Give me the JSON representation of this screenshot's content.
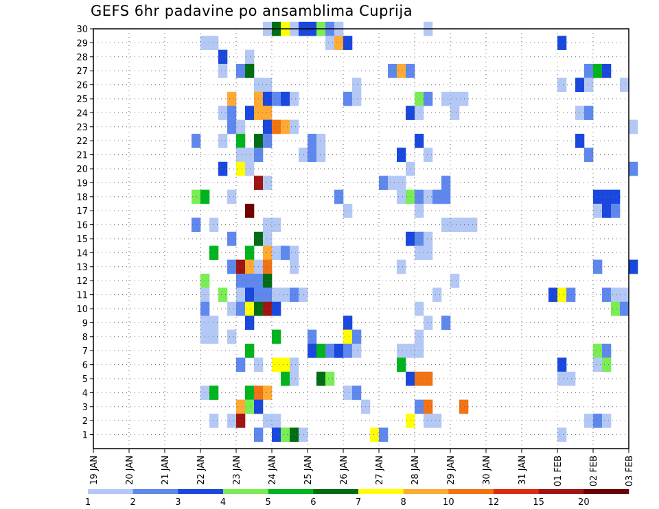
{
  "title": "GEFS 6hr padavine po ansamblima Cuprija",
  "chart_data": {
    "type": "heatmap",
    "title": "GEFS 6hr padavine po ansamblima Cuprija",
    "xlabel": "",
    "ylabel": "",
    "x_ticks": [
      "19 JAN",
      "20 JAN",
      "21 JAN",
      "22 JAN",
      "23 JAN",
      "24 JAN",
      "25 JAN",
      "26 JAN",
      "27 JAN",
      "28 JAN",
      "29 JAN",
      "30 JAN",
      "31 JAN",
      "01 FEB",
      "02 FEB",
      "03 FEB"
    ],
    "x_step_hours": 6,
    "y_ticks": [
      1,
      2,
      3,
      4,
      5,
      6,
      7,
      8,
      9,
      10,
      11,
      12,
      13,
      14,
      15,
      16,
      17,
      18,
      19,
      20,
      21,
      22,
      23,
      24,
      25,
      26,
      27,
      28,
      29,
      30
    ],
    "ylim": [
      0,
      30
    ],
    "grid": true,
    "colorbar": {
      "levels": [
        1,
        2,
        3,
        4,
        5,
        6,
        7,
        8,
        10,
        12,
        15,
        20
      ],
      "colors": [
        "#b4c8f5",
        "#5f88ee",
        "#1a48de",
        "#7aed54",
        "#00b41e",
        "#006d14",
        "#ffff00",
        "#ffaa32",
        "#f27314",
        "#dc2a10",
        "#a01414",
        "#6e0000"
      ]
    },
    "cells": [
      {
        "y": 30,
        "x": 19,
        "v": 1
      },
      {
        "y": 30,
        "x": 20,
        "v": 6
      },
      {
        "y": 30,
        "x": 21,
        "v": 7
      },
      {
        "y": 30,
        "x": 22,
        "v": 1
      },
      {
        "y": 30,
        "x": 23,
        "v": 3
      },
      {
        "y": 30,
        "x": 24,
        "v": 3
      },
      {
        "y": 30,
        "x": 25,
        "v": 4
      },
      {
        "y": 30,
        "x": 26,
        "v": 2
      },
      {
        "y": 30,
        "x": 27,
        "v": 1
      },
      {
        "y": 30,
        "x": 37,
        "v": 1
      },
      {
        "y": 29,
        "x": 12,
        "v": 1
      },
      {
        "y": 29,
        "x": 13,
        "v": 1
      },
      {
        "y": 29,
        "x": 26,
        "v": 1
      },
      {
        "y": 29,
        "x": 27,
        "v": 8
      },
      {
        "y": 29,
        "x": 28,
        "v": 3
      },
      {
        "y": 29,
        "x": 52,
        "v": 3
      },
      {
        "y": 28,
        "x": 14,
        "v": 3
      },
      {
        "y": 28,
        "x": 17,
        "v": 1
      },
      {
        "y": 27,
        "x": 14,
        "v": 1
      },
      {
        "y": 27,
        "x": 16,
        "v": 2
      },
      {
        "y": 27,
        "x": 17,
        "v": 6
      },
      {
        "y": 27,
        "x": 33,
        "v": 2
      },
      {
        "y": 27,
        "x": 34,
        "v": 8
      },
      {
        "y": 27,
        "x": 35,
        "v": 2
      },
      {
        "y": 27,
        "x": 55,
        "v": 2
      },
      {
        "y": 27,
        "x": 56,
        "v": 5
      },
      {
        "y": 27,
        "x": 57,
        "v": 3
      },
      {
        "y": 26,
        "x": 18,
        "v": 1
      },
      {
        "y": 26,
        "x": 19,
        "v": 1
      },
      {
        "y": 26,
        "x": 29,
        "v": 1
      },
      {
        "y": 26,
        "x": 52,
        "v": 1
      },
      {
        "y": 26,
        "x": 54,
        "v": 3
      },
      {
        "y": 26,
        "x": 55,
        "v": 1
      },
      {
        "y": 26,
        "x": 59,
        "v": 1
      },
      {
        "y": 25,
        "x": 15,
        "v": 8
      },
      {
        "y": 25,
        "x": 18,
        "v": 8
      },
      {
        "y": 25,
        "x": 19,
        "v": 3
      },
      {
        "y": 25,
        "x": 20,
        "v": 2
      },
      {
        "y": 25,
        "x": 21,
        "v": 3
      },
      {
        "y": 25,
        "x": 22,
        "v": 1
      },
      {
        "y": 25,
        "x": 28,
        "v": 2
      },
      {
        "y": 25,
        "x": 29,
        "v": 1
      },
      {
        "y": 25,
        "x": 36,
        "v": 4
      },
      {
        "y": 25,
        "x": 37,
        "v": 2
      },
      {
        "y": 25,
        "x": 39,
        "v": 1
      },
      {
        "y": 25,
        "x": 40,
        "v": 1
      },
      {
        "y": 25,
        "x": 41,
        "v": 1
      },
      {
        "y": 24,
        "x": 14,
        "v": 1
      },
      {
        "y": 24,
        "x": 15,
        "v": 2
      },
      {
        "y": 24,
        "x": 17,
        "v": 3
      },
      {
        "y": 24,
        "x": 18,
        "v": 8
      },
      {
        "y": 24,
        "x": 19,
        "v": 8
      },
      {
        "y": 24,
        "x": 35,
        "v": 3
      },
      {
        "y": 24,
        "x": 36,
        "v": 1
      },
      {
        "y": 24,
        "x": 40,
        "v": 1
      },
      {
        "y": 24,
        "x": 54,
        "v": 1
      },
      {
        "y": 24,
        "x": 55,
        "v": 2
      },
      {
        "y": 23,
        "x": 15,
        "v": 2
      },
      {
        "y": 23,
        "x": 16,
        "v": 1
      },
      {
        "y": 23,
        "x": 19,
        "v": 3
      },
      {
        "y": 23,
        "x": 20,
        "v": 10
      },
      {
        "y": 23,
        "x": 21,
        "v": 8
      },
      {
        "y": 23,
        "x": 22,
        "v": 1
      },
      {
        "y": 23,
        "x": 60,
        "v": 1
      },
      {
        "y": 22,
        "x": 11,
        "v": 2
      },
      {
        "y": 22,
        "x": 14,
        "v": 1
      },
      {
        "y": 22,
        "x": 16,
        "v": 5
      },
      {
        "y": 22,
        "x": 18,
        "v": 6
      },
      {
        "y": 22,
        "x": 19,
        "v": 2
      },
      {
        "y": 22,
        "x": 24,
        "v": 2
      },
      {
        "y": 22,
        "x": 25,
        "v": 1
      },
      {
        "y": 22,
        "x": 36,
        "v": 3
      },
      {
        "y": 22,
        "x": 54,
        "v": 3
      },
      {
        "y": 21,
        "x": 16,
        "v": 1
      },
      {
        "y": 21,
        "x": 17,
        "v": 1
      },
      {
        "y": 21,
        "x": 18,
        "v": 2
      },
      {
        "y": 21,
        "x": 23,
        "v": 1
      },
      {
        "y": 21,
        "x": 24,
        "v": 2
      },
      {
        "y": 21,
        "x": 25,
        "v": 1
      },
      {
        "y": 21,
        "x": 34,
        "v": 3
      },
      {
        "y": 21,
        "x": 37,
        "v": 1
      },
      {
        "y": 21,
        "x": 55,
        "v": 2
      },
      {
        "y": 20,
        "x": 14,
        "v": 3
      },
      {
        "y": 20,
        "x": 16,
        "v": 7
      },
      {
        "y": 20,
        "x": 17,
        "v": 1
      },
      {
        "y": 20,
        "x": 35,
        "v": 1
      },
      {
        "y": 20,
        "x": 60,
        "v": 2
      },
      {
        "y": 19,
        "x": 18,
        "v": 15
      },
      {
        "y": 19,
        "x": 19,
        "v": 1
      },
      {
        "y": 19,
        "x": 32,
        "v": 2
      },
      {
        "y": 19,
        "x": 33,
        "v": 1
      },
      {
        "y": 19,
        "x": 34,
        "v": 1
      },
      {
        "y": 19,
        "x": 39,
        "v": 2
      },
      {
        "y": 18,
        "x": 11,
        "v": 4
      },
      {
        "y": 18,
        "x": 12,
        "v": 5
      },
      {
        "y": 18,
        "x": 15,
        "v": 1
      },
      {
        "y": 18,
        "x": 27,
        "v": 2
      },
      {
        "y": 18,
        "x": 34,
        "v": 1
      },
      {
        "y": 18,
        "x": 35,
        "v": 4
      },
      {
        "y": 18,
        "x": 36,
        "v": 2
      },
      {
        "y": 18,
        "x": 37,
        "v": 1
      },
      {
        "y": 18,
        "x": 38,
        "v": 2
      },
      {
        "y": 18,
        "x": 39,
        "v": 2
      },
      {
        "y": 18,
        "x": 56,
        "v": 3
      },
      {
        "y": 18,
        "x": 57,
        "v": 3
      },
      {
        "y": 18,
        "x": 58,
        "v": 3
      },
      {
        "y": 17,
        "x": 17,
        "v": 20
      },
      {
        "y": 17,
        "x": 28,
        "v": 1
      },
      {
        "y": 17,
        "x": 36,
        "v": 1
      },
      {
        "y": 17,
        "x": 56,
        "v": 1
      },
      {
        "y": 17,
        "x": 57,
        "v": 3
      },
      {
        "y": 17,
        "x": 58,
        "v": 2
      },
      {
        "y": 16,
        "x": 11,
        "v": 2
      },
      {
        "y": 16,
        "x": 13,
        "v": 1
      },
      {
        "y": 16,
        "x": 19,
        "v": 1
      },
      {
        "y": 16,
        "x": 20,
        "v": 1
      },
      {
        "y": 16,
        "x": 39,
        "v": 1
      },
      {
        "y": 16,
        "x": 40,
        "v": 1
      },
      {
        "y": 16,
        "x": 41,
        "v": 1
      },
      {
        "y": 16,
        "x": 42,
        "v": 1
      },
      {
        "y": 15,
        "x": 15,
        "v": 2
      },
      {
        "y": 15,
        "x": 18,
        "v": 6
      },
      {
        "y": 15,
        "x": 19,
        "v": 1
      },
      {
        "y": 15,
        "x": 35,
        "v": 3
      },
      {
        "y": 15,
        "x": 36,
        "v": 2
      },
      {
        "y": 15,
        "x": 37,
        "v": 1
      },
      {
        "y": 14,
        "x": 13,
        "v": 5
      },
      {
        "y": 14,
        "x": 17,
        "v": 5
      },
      {
        "y": 14,
        "x": 19,
        "v": 8
      },
      {
        "y": 14,
        "x": 20,
        "v": 1
      },
      {
        "y": 14,
        "x": 21,
        "v": 2
      },
      {
        "y": 14,
        "x": 22,
        "v": 1
      },
      {
        "y": 14,
        "x": 36,
        "v": 1
      },
      {
        "y": 14,
        "x": 37,
        "v": 1
      },
      {
        "y": 13,
        "x": 15,
        "v": 2
      },
      {
        "y": 13,
        "x": 16,
        "v": 15
      },
      {
        "y": 13,
        "x": 17,
        "v": 8
      },
      {
        "y": 13,
        "x": 18,
        "v": 1
      },
      {
        "y": 13,
        "x": 19,
        "v": 10
      },
      {
        "y": 13,
        "x": 22,
        "v": 1
      },
      {
        "y": 13,
        "x": 34,
        "v": 1
      },
      {
        "y": 13,
        "x": 56,
        "v": 2
      },
      {
        "y": 13,
        "x": 60,
        "v": 3
      },
      {
        "y": 12,
        "x": 12,
        "v": 4
      },
      {
        "y": 12,
        "x": 16,
        "v": 2
      },
      {
        "y": 12,
        "x": 17,
        "v": 2
      },
      {
        "y": 12,
        "x": 18,
        "v": 2
      },
      {
        "y": 12,
        "x": 19,
        "v": 6
      },
      {
        "y": 12,
        "x": 40,
        "v": 1
      },
      {
        "y": 11,
        "x": 12,
        "v": 1
      },
      {
        "y": 11,
        "x": 14,
        "v": 4
      },
      {
        "y": 11,
        "x": 16,
        "v": 1
      },
      {
        "y": 11,
        "x": 17,
        "v": 3
      },
      {
        "y": 11,
        "x": 18,
        "v": 2
      },
      {
        "y": 11,
        "x": 19,
        "v": 2
      },
      {
        "y": 11,
        "x": 20,
        "v": 1
      },
      {
        "y": 11,
        "x": 21,
        "v": 1
      },
      {
        "y": 11,
        "x": 22,
        "v": 2
      },
      {
        "y": 11,
        "x": 23,
        "v": 1
      },
      {
        "y": 11,
        "x": 38,
        "v": 1
      },
      {
        "y": 11,
        "x": 51,
        "v": 3
      },
      {
        "y": 11,
        "x": 52,
        "v": 7
      },
      {
        "y": 11,
        "x": 53,
        "v": 2
      },
      {
        "y": 11,
        "x": 57,
        "v": 2
      },
      {
        "y": 11,
        "x": 58,
        "v": 1
      },
      {
        "y": 11,
        "x": 59,
        "v": 1
      },
      {
        "y": 10,
        "x": 12,
        "v": 2
      },
      {
        "y": 10,
        "x": 15,
        "v": 1
      },
      {
        "y": 10,
        "x": 16,
        "v": 2
      },
      {
        "y": 10,
        "x": 17,
        "v": 7
      },
      {
        "y": 10,
        "x": 18,
        "v": 6
      },
      {
        "y": 10,
        "x": 19,
        "v": 15
      },
      {
        "y": 10,
        "x": 20,
        "v": 3
      },
      {
        "y": 10,
        "x": 36,
        "v": 1
      },
      {
        "y": 10,
        "x": 58,
        "v": 4
      },
      {
        "y": 10,
        "x": 59,
        "v": 2
      },
      {
        "y": 9,
        "x": 12,
        "v": 1
      },
      {
        "y": 9,
        "x": 13,
        "v": 1
      },
      {
        "y": 9,
        "x": 17,
        "v": 3
      },
      {
        "y": 9,
        "x": 28,
        "v": 3
      },
      {
        "y": 9,
        "x": 37,
        "v": 1
      },
      {
        "y": 9,
        "x": 39,
        "v": 2
      },
      {
        "y": 8,
        "x": 12,
        "v": 1
      },
      {
        "y": 8,
        "x": 13,
        "v": 1
      },
      {
        "y": 8,
        "x": 15,
        "v": 1
      },
      {
        "y": 8,
        "x": 20,
        "v": 5
      },
      {
        "y": 8,
        "x": 24,
        "v": 2
      },
      {
        "y": 8,
        "x": 28,
        "v": 7
      },
      {
        "y": 8,
        "x": 29,
        "v": 2
      },
      {
        "y": 8,
        "x": 36,
        "v": 1
      },
      {
        "y": 7,
        "x": 17,
        "v": 5
      },
      {
        "y": 7,
        "x": 24,
        "v": 3
      },
      {
        "y": 7,
        "x": 25,
        "v": 5
      },
      {
        "y": 7,
        "x": 26,
        "v": 2
      },
      {
        "y": 7,
        "x": 27,
        "v": 3
      },
      {
        "y": 7,
        "x": 28,
        "v": 2
      },
      {
        "y": 7,
        "x": 29,
        "v": 1
      },
      {
        "y": 7,
        "x": 34,
        "v": 1
      },
      {
        "y": 7,
        "x": 35,
        "v": 1
      },
      {
        "y": 7,
        "x": 36,
        "v": 1
      },
      {
        "y": 7,
        "x": 56,
        "v": 4
      },
      {
        "y": 7,
        "x": 57,
        "v": 2
      },
      {
        "y": 6,
        "x": 16,
        "v": 2
      },
      {
        "y": 6,
        "x": 18,
        "v": 1
      },
      {
        "y": 6,
        "x": 20,
        "v": 7
      },
      {
        "y": 6,
        "x": 21,
        "v": 7
      },
      {
        "y": 6,
        "x": 22,
        "v": 1
      },
      {
        "y": 6,
        "x": 34,
        "v": 5
      },
      {
        "y": 6,
        "x": 52,
        "v": 3
      },
      {
        "y": 6,
        "x": 56,
        "v": 1
      },
      {
        "y": 6,
        "x": 57,
        "v": 4
      },
      {
        "y": 5,
        "x": 21,
        "v": 5
      },
      {
        "y": 5,
        "x": 22,
        "v": 1
      },
      {
        "y": 5,
        "x": 25,
        "v": 6
      },
      {
        "y": 5,
        "x": 26,
        "v": 4
      },
      {
        "y": 5,
        "x": 35,
        "v": 3
      },
      {
        "y": 5,
        "x": 36,
        "v": 10
      },
      {
        "y": 5,
        "x": 37,
        "v": 10
      },
      {
        "y": 5,
        "x": 52,
        "v": 1
      },
      {
        "y": 5,
        "x": 53,
        "v": 1
      },
      {
        "y": 4,
        "x": 12,
        "v": 1
      },
      {
        "y": 4,
        "x": 13,
        "v": 5
      },
      {
        "y": 4,
        "x": 17,
        "v": 5
      },
      {
        "y": 4,
        "x": 18,
        "v": 10
      },
      {
        "y": 4,
        "x": 19,
        "v": 8
      },
      {
        "y": 4,
        "x": 28,
        "v": 1
      },
      {
        "y": 4,
        "x": 29,
        "v": 2
      },
      {
        "y": 3,
        "x": 16,
        "v": 8
      },
      {
        "y": 3,
        "x": 17,
        "v": 4
      },
      {
        "y": 3,
        "x": 18,
        "v": 3
      },
      {
        "y": 3,
        "x": 30,
        "v": 1
      },
      {
        "y": 3,
        "x": 36,
        "v": 2
      },
      {
        "y": 3,
        "x": 37,
        "v": 10
      },
      {
        "y": 3,
        "x": 41,
        "v": 10
      },
      {
        "y": 2,
        "x": 13,
        "v": 1
      },
      {
        "y": 2,
        "x": 15,
        "v": 1
      },
      {
        "y": 2,
        "x": 16,
        "v": 15
      },
      {
        "y": 2,
        "x": 19,
        "v": 1
      },
      {
        "y": 2,
        "x": 20,
        "v": 1
      },
      {
        "y": 2,
        "x": 35,
        "v": 7
      },
      {
        "y": 2,
        "x": 37,
        "v": 1
      },
      {
        "y": 2,
        "x": 38,
        "v": 1
      },
      {
        "y": 2,
        "x": 55,
        "v": 1
      },
      {
        "y": 2,
        "x": 56,
        "v": 2
      },
      {
        "y": 2,
        "x": 57,
        "v": 1
      },
      {
        "y": 1,
        "x": 18,
        "v": 2
      },
      {
        "y": 1,
        "x": 20,
        "v": 3
      },
      {
        "y": 1,
        "x": 21,
        "v": 4
      },
      {
        "y": 1,
        "x": 22,
        "v": 6
      },
      {
        "y": 1,
        "x": 23,
        "v": 1
      },
      {
        "y": 1,
        "x": 31,
        "v": 7
      },
      {
        "y": 1,
        "x": 32,
        "v": 2
      },
      {
        "y": 1,
        "x": 52,
        "v": 1
      }
    ]
  }
}
